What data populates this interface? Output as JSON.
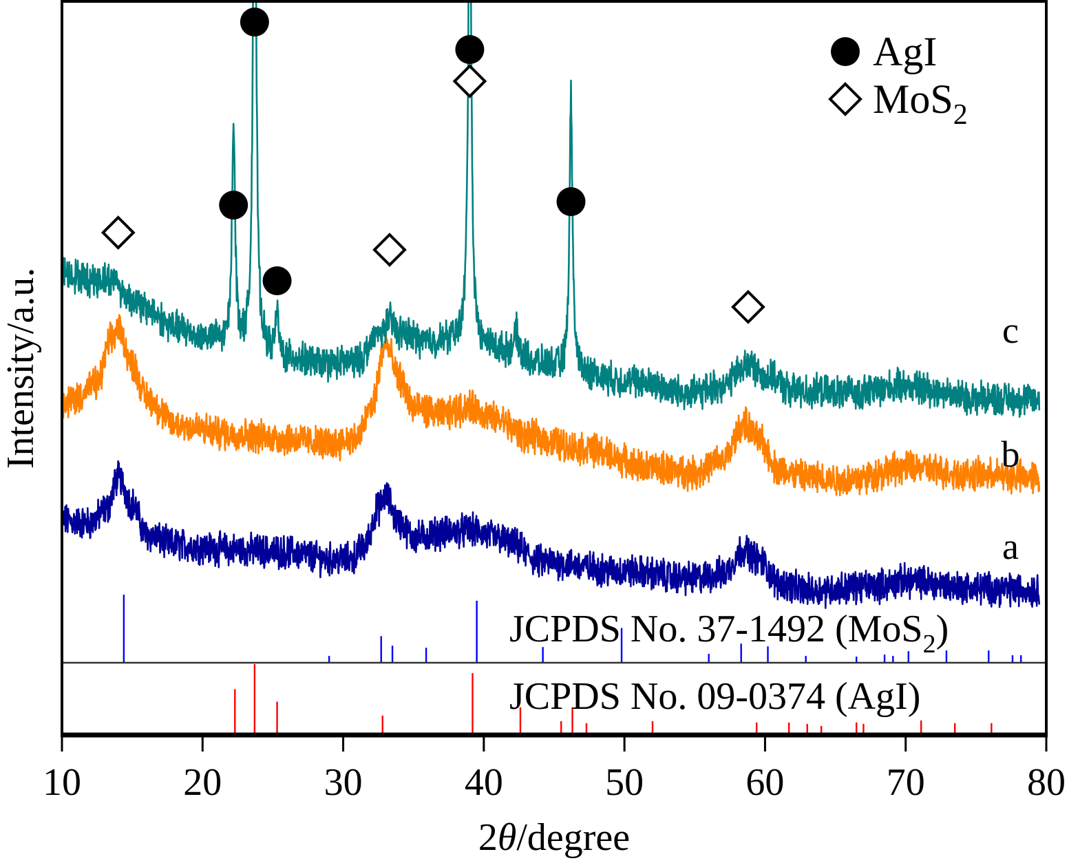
{
  "chart_data": {
    "type": "line",
    "title": "",
    "xlabel": "2θ/degree",
    "xlabel_parts": {
      "prefix": "2",
      "symbol": "θ",
      "suffix": "/degree"
    },
    "ylabel": "Intensity/a.u.",
    "xlim": [
      10,
      80
    ],
    "xticks": [
      10,
      20,
      30,
      40,
      50,
      60,
      70,
      80
    ],
    "xtick_labels": [
      "10",
      "20",
      "30",
      "40",
      "50",
      "60",
      "70",
      "80"
    ],
    "yticks": [],
    "grid": false,
    "legend": {
      "placement": "top-right",
      "entries": [
        {
          "marker": "filled-circle",
          "label": "AgI",
          "label_sub": ""
        },
        {
          "marker": "open-diamond",
          "label": "MoS",
          "label_sub": "2"
        }
      ]
    },
    "series": [
      {
        "name": "a",
        "color": "#000099",
        "offset": 0.0,
        "baseline": [
          [
            10,
            2.55
          ],
          [
            12,
            2.5
          ],
          [
            13.2,
            2.8
          ],
          [
            14.0,
            3.45
          ],
          [
            15.0,
            2.9
          ],
          [
            16,
            2.25
          ],
          [
            18,
            2.05
          ],
          [
            22,
            1.95
          ],
          [
            26,
            1.9
          ],
          [
            29,
            1.75
          ],
          [
            30.5,
            1.75
          ],
          [
            31.5,
            2.0
          ],
          [
            32.5,
            2.8
          ],
          [
            33.0,
            3.05
          ],
          [
            34.0,
            2.5
          ],
          [
            35,
            2.2
          ],
          [
            37,
            2.3
          ],
          [
            39,
            2.35
          ],
          [
            41,
            2.2
          ],
          [
            42,
            2.05
          ],
          [
            44,
            1.7
          ],
          [
            50,
            1.5
          ],
          [
            55,
            1.35
          ],
          [
            57,
            1.45
          ],
          [
            58.5,
            1.95
          ],
          [
            59.5,
            1.75
          ],
          [
            61,
            1.25
          ],
          [
            63,
            1.1
          ],
          [
            68,
            1.2
          ],
          [
            70,
            1.3
          ],
          [
            75,
            1.15
          ],
          [
            79.5,
            1.1
          ]
        ],
        "peaks": []
      },
      {
        "name": "b",
        "color": "#ff8000",
        "offset": 1.5,
        "baseline": [
          [
            10,
            3.45
          ],
          [
            11,
            3.6
          ],
          [
            12.5,
            3.9
          ],
          [
            13.5,
            4.8
          ],
          [
            14.0,
            5.05
          ],
          [
            15.0,
            4.3
          ],
          [
            16,
            3.6
          ],
          [
            18,
            3.05
          ],
          [
            22,
            2.85
          ],
          [
            26,
            2.75
          ],
          [
            29,
            2.65
          ],
          [
            31,
            2.75
          ],
          [
            32,
            3.4
          ],
          [
            33.0,
            4.7
          ],
          [
            34.0,
            4.0
          ],
          [
            35,
            3.4
          ],
          [
            37,
            3.25
          ],
          [
            39,
            3.4
          ],
          [
            41,
            3.15
          ],
          [
            43,
            2.8
          ],
          [
            47,
            2.55
          ],
          [
            52,
            2.15
          ],
          [
            55,
            2.05
          ],
          [
            57,
            2.3
          ],
          [
            58.5,
            3.05
          ],
          [
            59.5,
            2.75
          ],
          [
            61,
            2.1
          ],
          [
            63,
            1.95
          ],
          [
            66,
            1.9
          ],
          [
            70,
            2.15
          ],
          [
            75,
            2.0
          ],
          [
            79.5,
            1.95
          ]
        ],
        "peaks": []
      },
      {
        "name": "c",
        "color": "#008080",
        "offset": 3.0,
        "baseline": [
          [
            10,
            4.7
          ],
          [
            12,
            4.55
          ],
          [
            13.8,
            4.55
          ],
          [
            14.5,
            4.2
          ],
          [
            16,
            3.95
          ],
          [
            18,
            3.55
          ],
          [
            20,
            3.35
          ],
          [
            22,
            3.2
          ],
          [
            24,
            3.05
          ],
          [
            26,
            2.9
          ],
          [
            29,
            2.8
          ],
          [
            31,
            2.85
          ],
          [
            32.5,
            3.4
          ],
          [
            33.3,
            3.7
          ],
          [
            34,
            3.45
          ],
          [
            36,
            3.25
          ],
          [
            38,
            3.3
          ],
          [
            40,
            3.15
          ],
          [
            42,
            3.05
          ],
          [
            44,
            2.8
          ],
          [
            46,
            2.65
          ],
          [
            50,
            2.45
          ],
          [
            55,
            2.2
          ],
          [
            57,
            2.35
          ],
          [
            58.8,
            2.8
          ],
          [
            60,
            2.55
          ],
          [
            62,
            2.25
          ],
          [
            66,
            2.2
          ],
          [
            70,
            2.35
          ],
          [
            75,
            2.1
          ],
          [
            79.5,
            2.05
          ]
        ],
        "peaks": [
          {
            "x": 22.2,
            "height": 4.65,
            "marker": "filled-circle"
          },
          {
            "x": 23.7,
            "height": 12.6,
            "marker": "filled-circle"
          },
          {
            "x": 25.3,
            "height": 0.9,
            "marker": "filled-circle"
          },
          {
            "x": 39.0,
            "height": 10.7,
            "marker": "filled-circle+open-diamond"
          },
          {
            "x": 42.3,
            "height": 0.45,
            "marker": ""
          },
          {
            "x": 46.2,
            "height": 5.7,
            "marker": "filled-circle"
          }
        ]
      }
    ],
    "series_labels": [
      {
        "series": "a",
        "text": "a"
      },
      {
        "series": "b",
        "text": "b"
      },
      {
        "series": "c",
        "text": "c"
      }
    ],
    "peak_markers": [
      {
        "x": 14.0,
        "type": "open-diamond",
        "series": "c"
      },
      {
        "x": 33.3,
        "type": "open-diamond",
        "series": "c"
      },
      {
        "x": 58.8,
        "type": "open-diamond",
        "series": "c"
      },
      {
        "x": 22.2,
        "type": "filled-circle",
        "series": "c"
      },
      {
        "x": 23.7,
        "type": "filled-circle",
        "series": "c"
      },
      {
        "x": 25.3,
        "type": "filled-circle",
        "series": "c"
      },
      {
        "x": 39.0,
        "type": "filled-circle",
        "series": "c"
      },
      {
        "x": 39.0,
        "type": "open-diamond",
        "series": "c"
      },
      {
        "x": 46.2,
        "type": "filled-circle",
        "series": "c"
      }
    ],
    "reference_patterns": [
      {
        "name": "JCPDS No. 37-1492 (MoS2)",
        "label_main": "JCPDS No. 37-1492 (MoS",
        "label_sub": "2",
        "label_end": ")",
        "color": "#0000ff",
        "sticks": [
          {
            "x": 14.4,
            "intensity": 100
          },
          {
            "x": 29.0,
            "intensity": 10
          },
          {
            "x": 32.7,
            "intensity": 39
          },
          {
            "x": 33.5,
            "intensity": 25
          },
          {
            "x": 35.9,
            "intensity": 22
          },
          {
            "x": 39.5,
            "intensity": 91
          },
          {
            "x": 44.2,
            "intensity": 23
          },
          {
            "x": 49.8,
            "intensity": 51
          },
          {
            "x": 56.0,
            "intensity": 13
          },
          {
            "x": 58.3,
            "intensity": 28
          },
          {
            "x": 60.2,
            "intensity": 24
          },
          {
            "x": 62.9,
            "intensity": 10
          },
          {
            "x": 66.5,
            "intensity": 9
          },
          {
            "x": 68.5,
            "intensity": 12
          },
          {
            "x": 69.1,
            "intensity": 10
          },
          {
            "x": 70.2,
            "intensity": 17
          },
          {
            "x": 72.9,
            "intensity": 18
          },
          {
            "x": 75.9,
            "intensity": 18
          },
          {
            "x": 77.6,
            "intensity": 11
          },
          {
            "x": 78.2,
            "intensity": 11
          }
        ]
      },
      {
        "name": "JCPDS No. 09-0374 (AgI)",
        "label_main": "JCPDS No. 09-0374 (AgI)",
        "label_sub": "",
        "label_end": "",
        "color": "#ff0000",
        "sticks": [
          {
            "x": 22.3,
            "intensity": 64
          },
          {
            "x": 23.7,
            "intensity": 100
          },
          {
            "x": 25.3,
            "intensity": 46
          },
          {
            "x": 32.8,
            "intensity": 26
          },
          {
            "x": 39.2,
            "intensity": 87
          },
          {
            "x": 42.6,
            "intensity": 38
          },
          {
            "x": 45.5,
            "intensity": 18
          },
          {
            "x": 46.3,
            "intensity": 38
          },
          {
            "x": 47.3,
            "intensity": 15
          },
          {
            "x": 52.0,
            "intensity": 18
          },
          {
            "x": 59.4,
            "intensity": 16
          },
          {
            "x": 61.7,
            "intensity": 16
          },
          {
            "x": 63.0,
            "intensity": 14
          },
          {
            "x": 64.0,
            "intensity": 11
          },
          {
            "x": 66.5,
            "intensity": 16
          },
          {
            "x": 67.0,
            "intensity": 14
          },
          {
            "x": 71.1,
            "intensity": 19
          },
          {
            "x": 73.5,
            "intensity": 15
          },
          {
            "x": 76.1,
            "intensity": 15
          }
        ]
      }
    ]
  }
}
